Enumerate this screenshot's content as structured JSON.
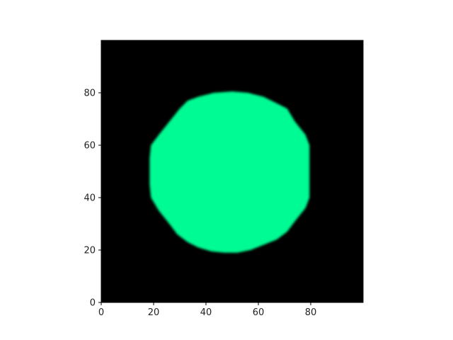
{
  "chart_data": {
    "type": "heatmap",
    "title": "",
    "xlabel": "",
    "ylabel": "",
    "xlim": [
      0,
      100
    ],
    "ylim": [
      0,
      100
    ],
    "x_ticks": [
      0,
      20,
      40,
      60,
      80
    ],
    "y_ticks": [
      0,
      20,
      40,
      60,
      80
    ],
    "x_tick_labels": [
      "0",
      "20",
      "40",
      "60",
      "80"
    ],
    "y_tick_labels": [
      "0",
      "20",
      "40",
      "60",
      "80"
    ],
    "background_value": 0,
    "background_color": "#000000",
    "shape_fill_color": "#00fa93",
    "shape_boundary": [
      [
        50,
        80.5
      ],
      [
        56,
        80
      ],
      [
        62,
        78.5
      ],
      [
        67,
        76
      ],
      [
        71,
        74
      ],
      [
        74,
        69
      ],
      [
        78,
        64
      ],
      [
        79.5,
        60
      ],
      [
        79.5,
        55
      ],
      [
        79.5,
        50
      ],
      [
        79.5,
        45
      ],
      [
        79.5,
        40
      ],
      [
        78,
        36
      ],
      [
        74,
        31
      ],
      [
        71,
        27
      ],
      [
        67,
        24
      ],
      [
        62,
        22
      ],
      [
        57,
        20
      ],
      [
        52,
        19
      ],
      [
        47,
        19
      ],
      [
        42,
        19.5
      ],
      [
        37,
        21
      ],
      [
        33,
        23
      ],
      [
        29,
        26
      ],
      [
        26,
        30
      ],
      [
        22,
        35
      ],
      [
        19,
        40
      ],
      [
        18.5,
        45
      ],
      [
        18.5,
        50
      ],
      [
        18.5,
        55
      ],
      [
        19,
        60
      ],
      [
        22,
        64
      ],
      [
        26,
        69
      ],
      [
        30,
        74
      ],
      [
        33,
        77
      ],
      [
        37,
        78.5
      ],
      [
        43,
        80
      ],
      [
        50,
        80.5
      ]
    ]
  }
}
